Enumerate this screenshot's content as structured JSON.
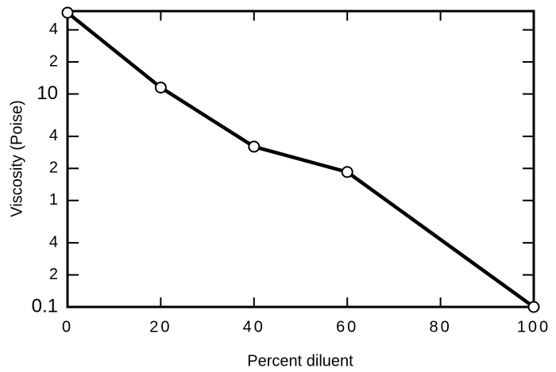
{
  "chart_data": {
    "type": "line",
    "x_label": "Percent diluent",
    "y_label": "Viscosity (Poise)",
    "x": [
      0,
      20,
      40,
      60,
      100
    ],
    "series": [
      {
        "name": "Viscosity",
        "color": "#000000",
        "values": [
          58,
          11.5,
          3.2,
          1.85,
          0.1
        ]
      }
    ],
    "xlim": [
      0,
      100
    ],
    "xticks": [
      0,
      20,
      40,
      60,
      80,
      100
    ],
    "ylim": [
      0.1,
      60
    ],
    "ylog": true,
    "yticks": [
      0.1,
      {
        "value": 0.2,
        "label": "2"
      },
      {
        "value": 0.4,
        "label": "4"
      },
      1,
      2,
      4,
      10,
      {
        "value": 20,
        "label": "2"
      },
      {
        "value": 40,
        "label": "4"
      }
    ],
    "grid": false
  }
}
